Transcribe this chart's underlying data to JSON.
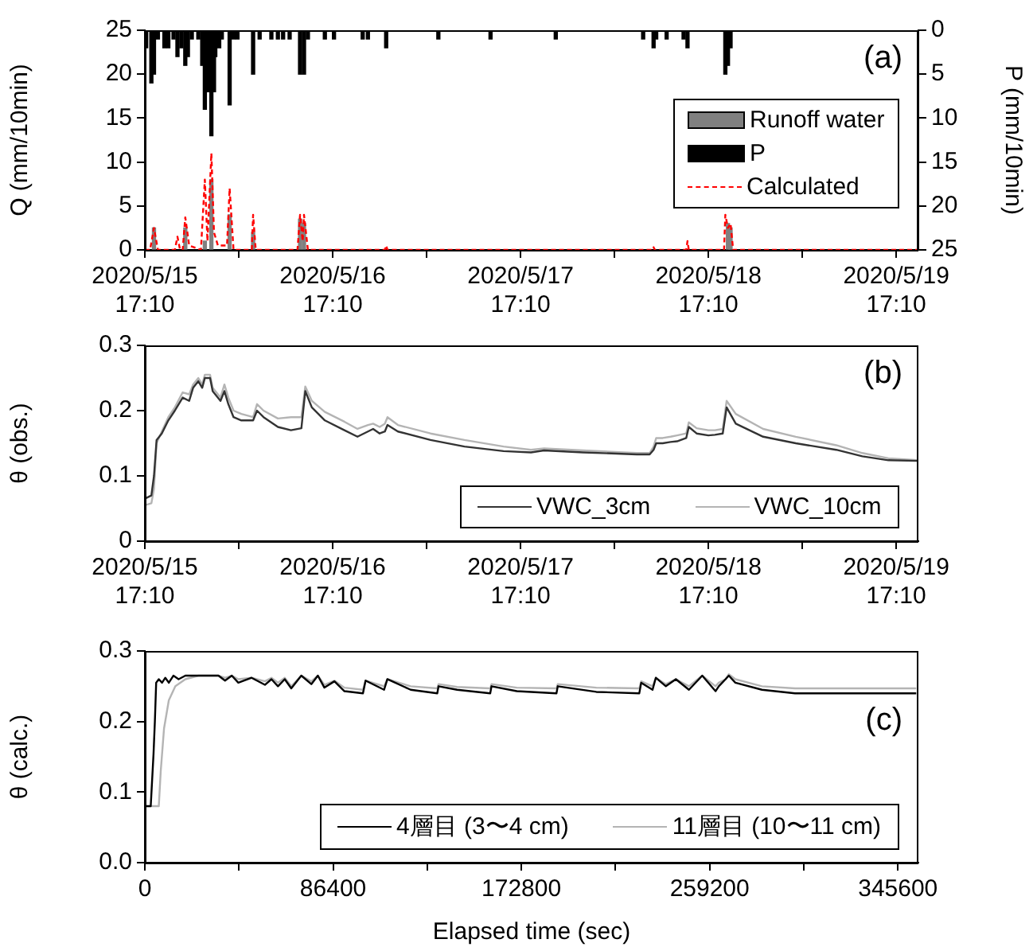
{
  "chart_data": [
    {
      "type": "bar",
      "ylabel": "Q (mm/10min)",
      "y2label": "P (mm/10min)",
      "annotations": [
        "(a)"
      ],
      "legend": "right",
      "xlim": [
        "2020-05-15T17:10",
        "2020-05-19T20:00"
      ],
      "xticks": [
        {
          "value": "2020-05-15T17:10",
          "label": "2020/5/15\n17:10"
        },
        {
          "value": "2020-05-16T05:10",
          "label": null
        },
        {
          "value": "2020-05-16T17:10",
          "label": "2020/5/16\n17:10"
        },
        {
          "value": "2020-05-17T05:10",
          "label": null
        },
        {
          "value": "2020-05-17T17:10",
          "label": "2020/5/17\n17:10"
        },
        {
          "value": "2020-05-18T05:10",
          "label": null
        },
        {
          "value": "2020-05-18T17:10",
          "label": "2020/5/18\n17:10"
        },
        {
          "value": "2020-05-19T05:10",
          "label": null
        },
        {
          "value": "2020-05-19T17:10",
          "label": "2020/5/19\n17:10"
        }
      ],
      "ylim": [
        0,
        25
      ],
      "yticks": [
        0,
        5,
        10,
        15,
        20,
        25
      ],
      "y2lim": [
        25,
        0
      ],
      "y2ticks": [
        0,
        5,
        10,
        15,
        20,
        25
      ],
      "series": [
        {
          "name": "Runoff water",
          "type": "bar",
          "color": "#808080",
          "x": [
            "2020-05-15T18:20",
            "2020-05-15T22:20",
            "2020-05-16T00:50",
            "2020-05-16T01:40",
            "2020-05-16T04:00",
            "2020-05-16T07:00",
            "2020-05-16T13:00",
            "2020-05-16T13:30",
            "2020-05-18T19:40",
            "2020-05-18T20:00"
          ],
          "values": [
            2.5,
            2.5,
            1,
            8,
            4,
            2,
            3.5,
            3,
            3,
            2.5
          ]
        },
        {
          "name": "P",
          "type": "bar",
          "axis": "y2",
          "color": "#000000",
          "x": [
            "2020-05-15T17:20",
            "2020-05-15T18:00",
            "2020-05-15T18:20",
            "2020-05-15T18:50",
            "2020-05-15T19:40",
            "2020-05-15T20:10",
            "2020-05-15T20:50",
            "2020-05-15T21:20",
            "2020-05-15T21:50",
            "2020-05-15T22:20",
            "2020-05-15T22:40",
            "2020-05-15T23:10",
            "2020-05-16T00:00",
            "2020-05-16T00:30",
            "2020-05-16T00:50",
            "2020-05-16T01:10",
            "2020-05-16T01:40",
            "2020-05-16T02:00",
            "2020-05-16T02:10",
            "2020-05-16T02:40",
            "2020-05-16T03:00",
            "2020-05-16T04:00",
            "2020-05-16T04:30",
            "2020-05-16T05:00",
            "2020-05-16T07:00",
            "2020-05-16T07:50",
            "2020-05-16T09:20",
            "2020-05-16T10:10",
            "2020-05-16T10:50",
            "2020-05-16T11:40",
            "2020-05-16T13:00",
            "2020-05-16T13:30",
            "2020-05-16T14:00",
            "2020-05-16T16:10",
            "2020-05-16T17:20",
            "2020-05-16T21:00",
            "2020-05-16T21:40",
            "2020-05-17T00:00",
            "2020-05-17T06:40",
            "2020-05-17T13:20",
            "2020-05-17T21:40",
            "2020-05-18T08:50",
            "2020-05-18T10:10",
            "2020-05-18T10:30",
            "2020-05-18T11:50",
            "2020-05-18T14:00",
            "2020-05-18T14:30",
            "2020-05-18T19:20",
            "2020-05-18T19:40",
            "2020-05-18T20:00"
          ],
          "values": [
            2,
            6,
            5,
            1,
            2,
            2,
            1,
            3,
            2,
            4,
            3,
            1,
            1,
            4,
            9,
            7,
            12,
            7,
            3,
            2,
            1,
            8.5,
            1,
            1,
            5,
            1,
            1,
            1,
            1,
            1,
            5,
            5,
            1,
            1,
            1,
            1,
            1,
            2,
            1,
            1,
            1,
            1,
            2,
            1,
            1,
            1,
            2,
            5,
            4,
            2
          ]
        },
        {
          "name": "Calculated",
          "type": "line",
          "line_style": "dashed",
          "color": "#ff0000",
          "x": [
            "2020-05-15T17:10",
            "2020-05-15T17:50",
            "2020-05-15T18:20",
            "2020-05-15T18:50",
            "2020-05-15T21:00",
            "2020-05-15T21:20",
            "2020-05-15T21:40",
            "2020-05-15T22:00",
            "2020-05-15T22:20",
            "2020-05-15T22:50",
            "2020-05-16T00:20",
            "2020-05-16T00:50",
            "2020-05-16T01:10",
            "2020-05-16T01:40",
            "2020-05-16T02:00",
            "2020-05-16T02:30",
            "2020-05-16T03:40",
            "2020-05-16T04:00",
            "2020-05-16T04:30",
            "2020-05-16T06:50",
            "2020-05-16T07:00",
            "2020-05-16T07:20",
            "2020-05-16T12:40",
            "2020-05-16T13:00",
            "2020-05-16T13:20",
            "2020-05-16T13:30",
            "2020-05-16T14:00",
            "2020-05-16T23:50",
            "2020-05-17T00:00",
            "2020-05-17T00:10",
            "2020-05-18T10:00",
            "2020-05-18T10:10",
            "2020-05-18T10:20",
            "2020-05-18T14:20",
            "2020-05-18T14:30",
            "2020-05-18T14:40",
            "2020-05-18T19:10",
            "2020-05-18T19:20",
            "2020-05-18T19:40",
            "2020-05-18T20:00",
            "2020-05-18T20:20",
            "2020-05-19T20:00"
          ],
          "values": [
            0,
            0,
            2.5,
            0,
            0,
            1.5,
            0,
            0,
            3.7,
            0.5,
            0,
            8,
            1,
            11,
            2,
            0.5,
            0.5,
            7,
            0,
            0,
            4,
            0,
            0,
            4,
            1,
            4,
            0,
            0,
            0.5,
            0,
            0,
            0.3,
            0,
            0,
            1,
            0,
            0,
            4,
            2.5,
            3,
            0,
            0
          ]
        }
      ]
    },
    {
      "type": "line",
      "ylabel": "θ (obs.)",
      "annotations": [
        "(b)"
      ],
      "legend": "bottom right",
      "xlim": [
        "2020-05-15T17:10",
        "2020-05-19T20:00"
      ],
      "xticks": [
        {
          "value": "2020-05-15T17:10",
          "label": "2020/5/15\n17:10"
        },
        {
          "value": "2020-05-16T05:10",
          "label": null
        },
        {
          "value": "2020-05-16T17:10",
          "label": "2020/5/16\n17:10"
        },
        {
          "value": "2020-05-17T05:10",
          "label": null
        },
        {
          "value": "2020-05-17T17:10",
          "label": "2020/5/17\n17:10"
        },
        {
          "value": "2020-05-18T05:10",
          "label": null
        },
        {
          "value": "2020-05-18T17:10",
          "label": "2020/5/18\n17:10"
        },
        {
          "value": "2020-05-19T05:10",
          "label": null
        },
        {
          "value": "2020-05-19T17:10",
          "label": "2020/5/19\n17:10"
        }
      ],
      "ylim": [
        0,
        0.3
      ],
      "yticks": [
        0,
        0.1,
        0.2,
        0.3
      ],
      "x": [
        "2020-05-15T17:10",
        "2020-05-15T18:00",
        "2020-05-15T18:20",
        "2020-05-15T18:40",
        "2020-05-15T19:20",
        "2020-05-15T20:10",
        "2020-05-15T21:00",
        "2020-05-15T22:00",
        "2020-05-15T22:50",
        "2020-05-15T23:20",
        "2020-05-16T00:00",
        "2020-05-16T00:30",
        "2020-05-16T00:50",
        "2020-05-16T01:30",
        "2020-05-16T01:50",
        "2020-05-16T02:50",
        "2020-05-16T03:20",
        "2020-05-16T03:50",
        "2020-05-16T04:30",
        "2020-05-16T05:30",
        "2020-05-16T07:00",
        "2020-05-16T07:30",
        "2020-05-16T08:20",
        "2020-05-16T10:10",
        "2020-05-16T11:50",
        "2020-05-16T13:10",
        "2020-05-16T13:40",
        "2020-05-16T14:30",
        "2020-05-16T16:10",
        "2020-05-16T18:40",
        "2020-05-16T20:20",
        "2020-05-16T21:40",
        "2020-05-16T22:20",
        "2020-05-16T23:10",
        "2020-05-16T23:50",
        "2020-05-17T00:10",
        "2020-05-17T01:30",
        "2020-05-17T05:40",
        "2020-05-17T10:00",
        "2020-05-17T15:00",
        "2020-05-17T18:30",
        "2020-05-17T20:10",
        "2020-05-18T01:10",
        "2020-05-18T08:00",
        "2020-05-18T09:40",
        "2020-05-18T10:10",
        "2020-05-18T10:30",
        "2020-05-18T11:20",
        "2020-05-18T12:20",
        "2020-05-18T13:10",
        "2020-05-18T14:20",
        "2020-05-18T14:40",
        "2020-05-18T15:40",
        "2020-05-18T17:10",
        "2020-05-18T18:00",
        "2020-05-18T19:00",
        "2020-05-18T19:30",
        "2020-05-18T20:40",
        "2020-05-19T00:10",
        "2020-05-19T04:20",
        "2020-05-19T09:30",
        "2020-05-19T12:50",
        "2020-05-19T16:10",
        "2020-05-19T19:50"
      ],
      "series": [
        {
          "name": "VWC_3cm",
          "color": "#333333",
          "values": [
            0.065,
            0.07,
            0.1,
            0.155,
            0.165,
            0.185,
            0.2,
            0.22,
            0.215,
            0.235,
            0.245,
            0.235,
            0.25,
            0.25,
            0.23,
            0.215,
            0.23,
            0.21,
            0.19,
            0.185,
            0.185,
            0.2,
            0.19,
            0.175,
            0.17,
            0.173,
            0.23,
            0.205,
            0.185,
            0.17,
            0.16,
            0.168,
            0.172,
            0.165,
            0.168,
            0.178,
            0.168,
            0.155,
            0.145,
            0.138,
            0.136,
            0.139,
            0.136,
            0.133,
            0.133,
            0.14,
            0.15,
            0.15,
            0.152,
            0.153,
            0.158,
            0.175,
            0.165,
            0.162,
            0.163,
            0.165,
            0.205,
            0.18,
            0.16,
            0.15,
            0.14,
            0.13,
            0.124,
            0.123
          ]
        },
        {
          "name": "VWC_10cm",
          "color": "#b4b4b4",
          "values": [
            0.055,
            0.058,
            0.08,
            0.15,
            0.168,
            0.19,
            0.205,
            0.228,
            0.225,
            0.24,
            0.25,
            0.24,
            0.255,
            0.255,
            0.235,
            0.22,
            0.24,
            0.22,
            0.2,
            0.195,
            0.19,
            0.21,
            0.2,
            0.188,
            0.19,
            0.19,
            0.237,
            0.215,
            0.198,
            0.183,
            0.172,
            0.178,
            0.18,
            0.175,
            0.18,
            0.19,
            0.178,
            0.165,
            0.155,
            0.145,
            0.14,
            0.142,
            0.139,
            0.135,
            0.135,
            0.145,
            0.158,
            0.158,
            0.16,
            0.162,
            0.165,
            0.182,
            0.173,
            0.17,
            0.17,
            0.172,
            0.215,
            0.195,
            0.172,
            0.16,
            0.147,
            0.135,
            0.127,
            0.124
          ]
        }
      ]
    },
    {
      "type": "line",
      "xlabel": "Elapsed time (sec)",
      "ylabel": "θ (calc.)",
      "annotations": [
        "(c)"
      ],
      "legend": "bottom right",
      "xlim": [
        0,
        355000
      ],
      "xticks": [
        0,
        {
          "value": 43200,
          "label": null
        },
        86400,
        {
          "value": 129600,
          "label": null
        },
        172800,
        {
          "value": 216000,
          "label": null
        },
        259200,
        {
          "value": 302400,
          "label": null
        },
        345600
      ],
      "ylim": [
        0,
        0.3
      ],
      "yticks": [
        {
          "value": 0,
          "label": "0.0"
        },
        0.1,
        0.2,
        0.3
      ],
      "series": [
        {
          "name": "4層目 (3〜4 cm)",
          "color": "#000000",
          "x": [
            0,
            2700,
            4000,
            4600,
            5200,
            6400,
            7900,
            9400,
            11000,
            13100,
            15500,
            18600,
            24600,
            33800,
            36800,
            39900,
            42900,
            49000,
            55100,
            58100,
            61100,
            64200,
            67200,
            71800,
            76400,
            79400,
            82400,
            87000,
            91600,
            100100,
            101300,
            109800,
            111300,
            122000,
            134200,
            134800,
            143300,
            158500,
            159100,
            170700,
            188900,
            189500,
            207200,
            226900,
            227800,
            233000,
            234500,
            239100,
            243700,
            249700,
            255800,
            261900,
            263400,
            266500,
            268000,
            271000,
            283200,
            298400,
            354000
          ],
          "values": [
            0.08,
            0.08,
            0.155,
            0.2,
            0.255,
            0.26,
            0.255,
            0.262,
            0.255,
            0.265,
            0.26,
            0.265,
            0.265,
            0.265,
            0.258,
            0.265,
            0.255,
            0.262,
            0.252,
            0.26,
            0.25,
            0.26,
            0.247,
            0.265,
            0.253,
            0.265,
            0.248,
            0.257,
            0.243,
            0.24,
            0.258,
            0.245,
            0.26,
            0.245,
            0.24,
            0.25,
            0.245,
            0.24,
            0.25,
            0.243,
            0.24,
            0.25,
            0.242,
            0.24,
            0.255,
            0.245,
            0.262,
            0.25,
            0.26,
            0.245,
            0.265,
            0.243,
            0.25,
            0.26,
            0.265,
            0.255,
            0.245,
            0.24,
            0.24
          ]
        },
        {
          "name": "11層目 (10〜11 cm)",
          "color": "#b4b4b4",
          "x": [
            0,
            2700,
            6400,
            7300,
            8800,
            11000,
            14000,
            18600,
            24600,
            33800,
            36800,
            39900,
            42900,
            49000,
            55100,
            58100,
            61100,
            64200,
            67200,
            71800,
            76400,
            79400,
            82400,
            87000,
            91600,
            100100,
            101300,
            109800,
            111300,
            122000,
            134200,
            134800,
            143300,
            158500,
            159100,
            170700,
            188900,
            189500,
            207200,
            226900,
            227800,
            233000,
            234500,
            239100,
            243700,
            249700,
            255800,
            261900,
            263400,
            266500,
            268000,
            271000,
            283200,
            298400,
            354000
          ],
          "values": [
            0.08,
            0.08,
            0.08,
            0.13,
            0.19,
            0.23,
            0.25,
            0.26,
            0.265,
            0.265,
            0.262,
            0.265,
            0.26,
            0.262,
            0.257,
            0.262,
            0.255,
            0.262,
            0.25,
            0.265,
            0.257,
            0.265,
            0.252,
            0.258,
            0.248,
            0.245,
            0.258,
            0.25,
            0.26,
            0.25,
            0.247,
            0.253,
            0.249,
            0.247,
            0.253,
            0.248,
            0.247,
            0.253,
            0.248,
            0.247,
            0.257,
            0.25,
            0.262,
            0.253,
            0.26,
            0.25,
            0.265,
            0.25,
            0.255,
            0.26,
            0.267,
            0.26,
            0.25,
            0.247,
            0.247
          ]
        }
      ]
    }
  ]
}
